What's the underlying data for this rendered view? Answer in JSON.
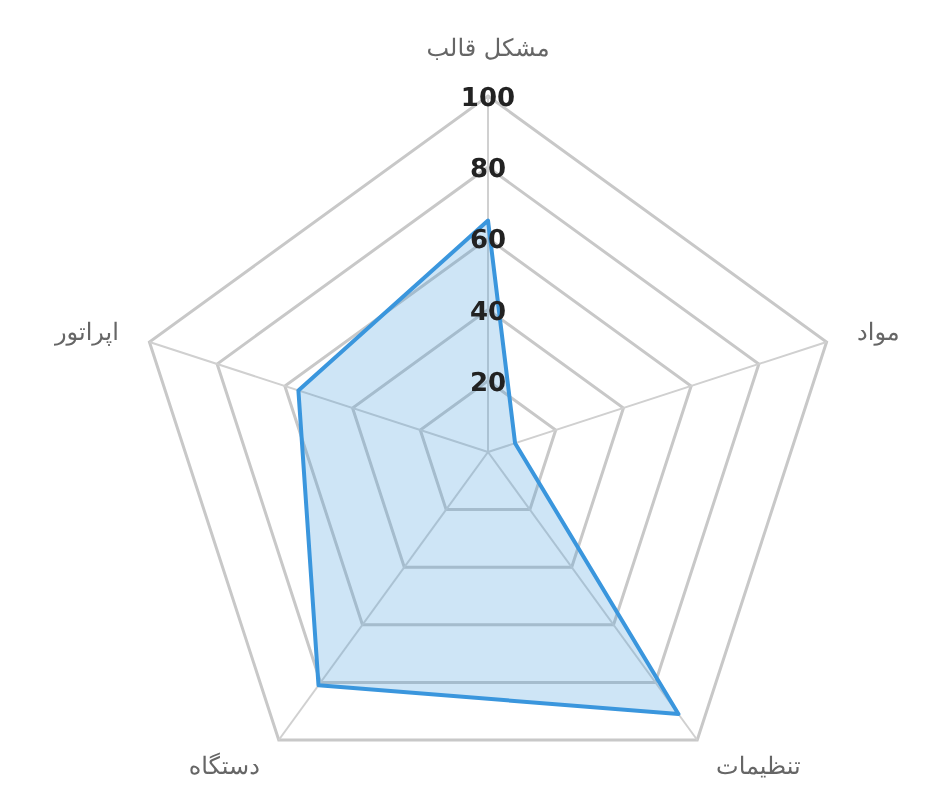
{
  "chart_data": {
    "type": "radar",
    "categories": [
      "مشکل قالب",
      "مواد",
      "تنظیمات",
      "دستگاه",
      "اپراتور"
    ],
    "series": [
      {
        "color": "#3a96dd",
        "values": [
          65,
          8,
          91,
          81,
          56
        ]
      }
    ],
    "ylim": [
      0,
      100
    ],
    "yticks": [
      20,
      40,
      60,
      80,
      100
    ],
    "grid": true
  }
}
